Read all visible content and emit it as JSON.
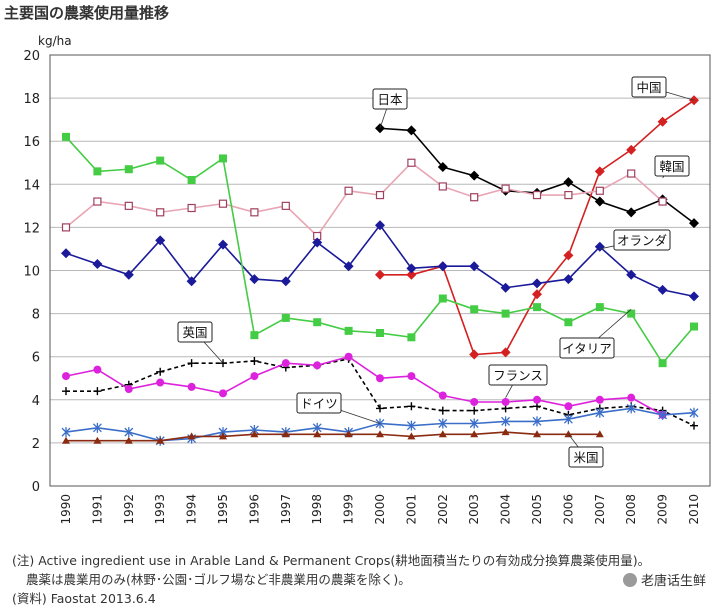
{
  "title": "主要国の農薬使用量推移",
  "footer": {
    "line1": "(注) Active ingredient use in Arable Land & Permanent Crops(耕地面積当たりの有効成分換算農薬使用量)。",
    "line2": "農薬は農業用のみ(林野･公園･ゴルフ場など非農業用の農薬を除く)。",
    "line3": "(資料) Faostat 2013.6.4"
  },
  "watermark": "老唐话生鲜",
  "chart_data": {
    "type": "line",
    "ylabel": "kg/ha",
    "ylim": [
      0,
      20
    ],
    "yticks": [
      0,
      2,
      4,
      6,
      8,
      10,
      12,
      14,
      16,
      18,
      20
    ],
    "x": [
      "1990",
      "1991",
      "1992",
      "1993",
      "1994",
      "1995",
      "1996",
      "1997",
      "1998",
      "1999",
      "2000",
      "2001",
      "2002",
      "2003",
      "2004",
      "2005",
      "2006",
      "2007",
      "2008",
      "2009",
      "2010"
    ],
    "grid": "horizontal",
    "series": [
      {
        "name": "日本",
        "color": "#000000",
        "marker": "diamond",
        "dash": false,
        "values": [
          null,
          null,
          null,
          null,
          null,
          null,
          null,
          null,
          null,
          null,
          16.6,
          16.5,
          14.8,
          14.4,
          13.7,
          13.6,
          14.1,
          13.2,
          12.7,
          13.3,
          12.2
        ]
      },
      {
        "name": "中国",
        "color": "#d42020",
        "marker": "diamond",
        "dash": false,
        "values": [
          null,
          null,
          null,
          null,
          null,
          null,
          null,
          null,
          null,
          null,
          9.8,
          9.8,
          10.2,
          6.1,
          6.2,
          8.9,
          10.7,
          14.6,
          15.6,
          16.9,
          17.9
        ]
      },
      {
        "name": "韓国",
        "color": "#e8a6b4",
        "marker": "square-open",
        "dash": false,
        "values": [
          12.0,
          13.2,
          13.0,
          12.7,
          12.9,
          13.1,
          12.7,
          13.0,
          11.6,
          13.7,
          13.5,
          15.0,
          13.9,
          13.4,
          13.8,
          13.5,
          13.5,
          13.7,
          14.5,
          13.2,
          null
        ]
      },
      {
        "name": "オランダ",
        "color": "#1a1a9a",
        "marker": "diamond",
        "dash": false,
        "values": [
          10.8,
          10.3,
          9.8,
          11.4,
          9.5,
          11.2,
          9.6,
          9.5,
          11.3,
          10.2,
          12.1,
          10.1,
          10.2,
          10.2,
          9.2,
          9.4,
          9.6,
          11.1,
          9.8,
          9.1,
          8.8
        ]
      },
      {
        "name": "イタリア",
        "color": "#44cc44",
        "marker": "square",
        "dash": false,
        "values": [
          16.2,
          14.6,
          14.7,
          15.1,
          14.2,
          15.2,
          7.0,
          7.8,
          7.6,
          7.2,
          7.1,
          6.9,
          8.7,
          8.2,
          8.0,
          8.3,
          7.6,
          8.3,
          8.0,
          5.7,
          7.4
        ]
      },
      {
        "name": "英国",
        "color": "#000000",
        "marker": "plus",
        "dash": true,
        "values": [
          4.4,
          4.4,
          4.7,
          5.3,
          5.7,
          5.7,
          5.8,
          5.5,
          5.6,
          5.9,
          3.6,
          3.7,
          3.5,
          3.5,
          3.6,
          3.7,
          3.3,
          3.6,
          3.7,
          3.5,
          2.8
        ]
      },
      {
        "name": "フランス",
        "color": "#dd22dd",
        "marker": "circle",
        "dash": false,
        "values": [
          5.1,
          5.4,
          4.5,
          4.8,
          4.6,
          4.3,
          5.1,
          5.7,
          5.6,
          6.0,
          5.0,
          5.1,
          4.2,
          3.9,
          3.9,
          4.0,
          3.7,
          4.0,
          4.1,
          3.3,
          null
        ]
      },
      {
        "name": "ドイツ",
        "color": "#3a6ec8",
        "marker": "star",
        "dash": false,
        "values": [
          2.5,
          2.7,
          2.5,
          2.1,
          2.2,
          2.5,
          2.6,
          2.5,
          2.7,
          2.5,
          2.9,
          2.8,
          2.9,
          2.9,
          3.0,
          3.0,
          3.1,
          3.4,
          3.6,
          3.3,
          3.4
        ]
      },
      {
        "name": "米国",
        "color": "#8a2a10",
        "marker": "triangle",
        "dash": false,
        "values": [
          2.1,
          2.1,
          2.1,
          2.1,
          2.3,
          2.3,
          2.4,
          2.4,
          2.4,
          2.4,
          2.4,
          2.3,
          2.4,
          2.4,
          2.5,
          2.4,
          2.4,
          2.4,
          null,
          null,
          null
        ]
      }
    ]
  }
}
